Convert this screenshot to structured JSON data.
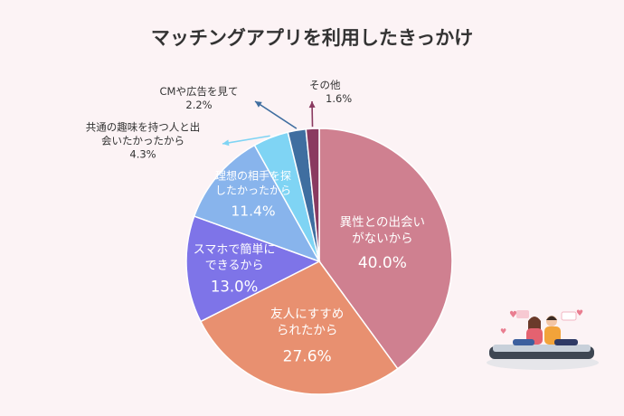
{
  "chart_data": {
    "type": "pie",
    "title": "マッチングアプリを利用したきっかけ",
    "slices": [
      {
        "label_lines": [
          "異性との出会い",
          "がないから"
        ],
        "value": 40.0,
        "value_text": "40.0%",
        "color": "#cf8090"
      },
      {
        "label_lines": [
          "友人にすすめ",
          "られたから"
        ],
        "value": 27.6,
        "value_text": "27.6%",
        "color": "#e89070"
      },
      {
        "label_lines": [
          "スマホで簡単に",
          "できるから"
        ],
        "value": 13.0,
        "value_text": "13.0%",
        "color": "#7e74e8"
      },
      {
        "label_lines": [
          "理想の相手を探",
          "したかったから"
        ],
        "value": 11.4,
        "value_text": "11.4%",
        "color": "#88b4ec"
      },
      {
        "label_lines": [
          "共通の趣味を持つ人と出",
          "会いたかったから"
        ],
        "value": 4.3,
        "value_text": "4.3%",
        "color": "#7fd4f4"
      },
      {
        "label_lines": [
          "CMや広告を見て"
        ],
        "value": 2.2,
        "value_text": "2.2%",
        "color": "#3f6ea0"
      },
      {
        "label_lines": [
          "その他"
        ],
        "value": 1.6,
        "value_text": "1.6%",
        "color": "#8a3a60"
      }
    ]
  }
}
